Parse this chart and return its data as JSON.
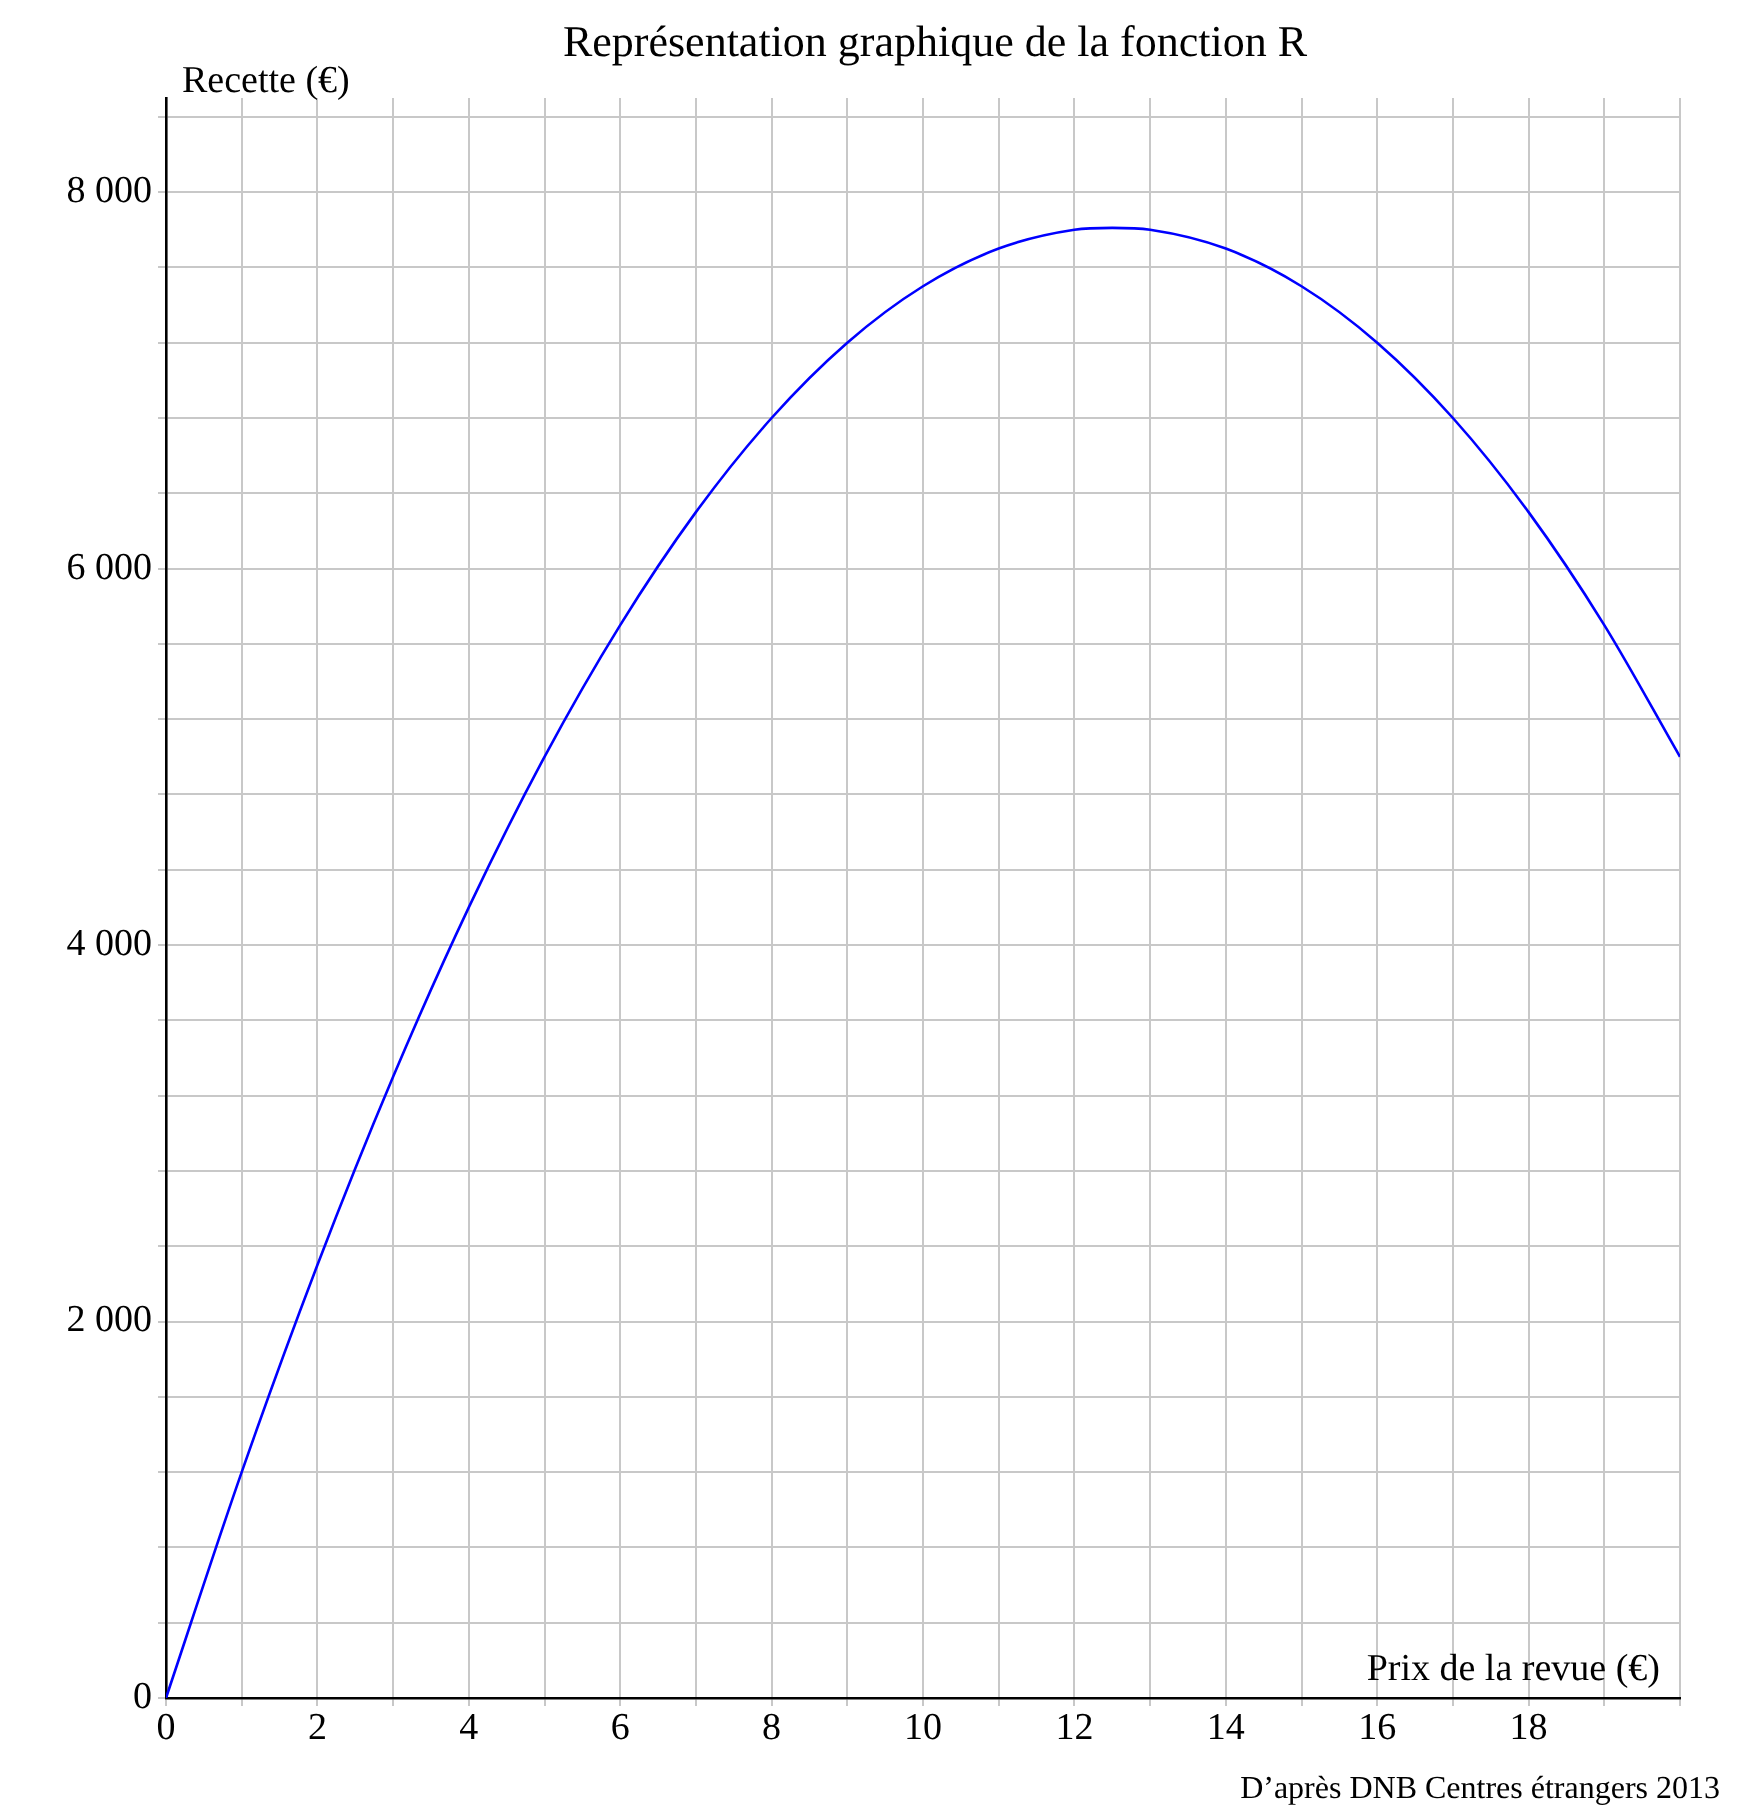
{
  "chart_data": {
    "type": "line",
    "title": "Représentation graphique de la fonction R",
    "xlabel": "Prix de la revue (€)",
    "ylabel": "Recette (€)",
    "annotations": [
      "D’après DNB Centres étrangers 2013"
    ],
    "x": [
      0,
      1,
      2,
      3,
      4,
      5,
      6,
      7,
      8,
      9,
      10,
      11,
      12,
      12.5,
      13,
      14,
      15,
      16,
      17,
      18,
      19,
      20
    ],
    "series": [
      {
        "color": "#0000ff",
        "values": [
          0,
          1200,
          2300,
          3300,
          4200,
          5000,
          5700,
          6300,
          6800,
          7200,
          7500,
          7700,
          7800,
          7810,
          7800,
          7700,
          7500,
          7200,
          6800,
          6300,
          5700,
          5000
        ]
      }
    ],
    "xlim": [
      0,
      20
    ],
    "ylim": [
      0,
      8500
    ],
    "xticks": [
      0,
      {
        "value": 1,
        "label": null
      },
      2,
      {
        "value": 3,
        "label": null
      },
      4,
      {
        "value": 5,
        "label": null
      },
      6,
      {
        "value": 7,
        "label": null
      },
      8,
      {
        "value": 9,
        "label": null
      },
      10,
      {
        "value": 11,
        "label": null
      },
      12,
      {
        "value": 13,
        "label": null
      },
      14,
      {
        "value": 15,
        "label": null
      },
      16,
      {
        "value": 17,
        "label": null
      },
      18,
      {
        "value": 19,
        "label": null
      },
      {
        "value": 20,
        "label": null
      }
    ],
    "yticks": [
      {
        "value": 0,
        "label": "0"
      },
      {
        "value": 400,
        "label": null
      },
      {
        "value": 800,
        "label": null
      },
      {
        "value": 1200,
        "label": null
      },
      {
        "value": 1600,
        "label": null
      },
      {
        "value": 2000,
        "label": "2 000"
      },
      {
        "value": 2400,
        "label": null
      },
      {
        "value": 2800,
        "label": null
      },
      {
        "value": 3200,
        "label": null
      },
      {
        "value": 3600,
        "label": null
      },
      {
        "value": 4000,
        "label": "4 000"
      },
      {
        "value": 4400,
        "label": null
      },
      {
        "value": 4800,
        "label": null
      },
      {
        "value": 5200,
        "label": null
      },
      {
        "value": 5600,
        "label": null
      },
      {
        "value": 6000,
        "label": "6 000"
      },
      {
        "value": 6400,
        "label": null
      },
      {
        "value": 6800,
        "label": null
      },
      {
        "value": 7200,
        "label": null
      },
      {
        "value": 7600,
        "label": null
      },
      {
        "value": 8000,
        "label": "8 000"
      },
      {
        "value": 8400,
        "label": null
      }
    ],
    "grid": true,
    "legend": false,
    "marker": "none",
    "line_style": "solid"
  }
}
